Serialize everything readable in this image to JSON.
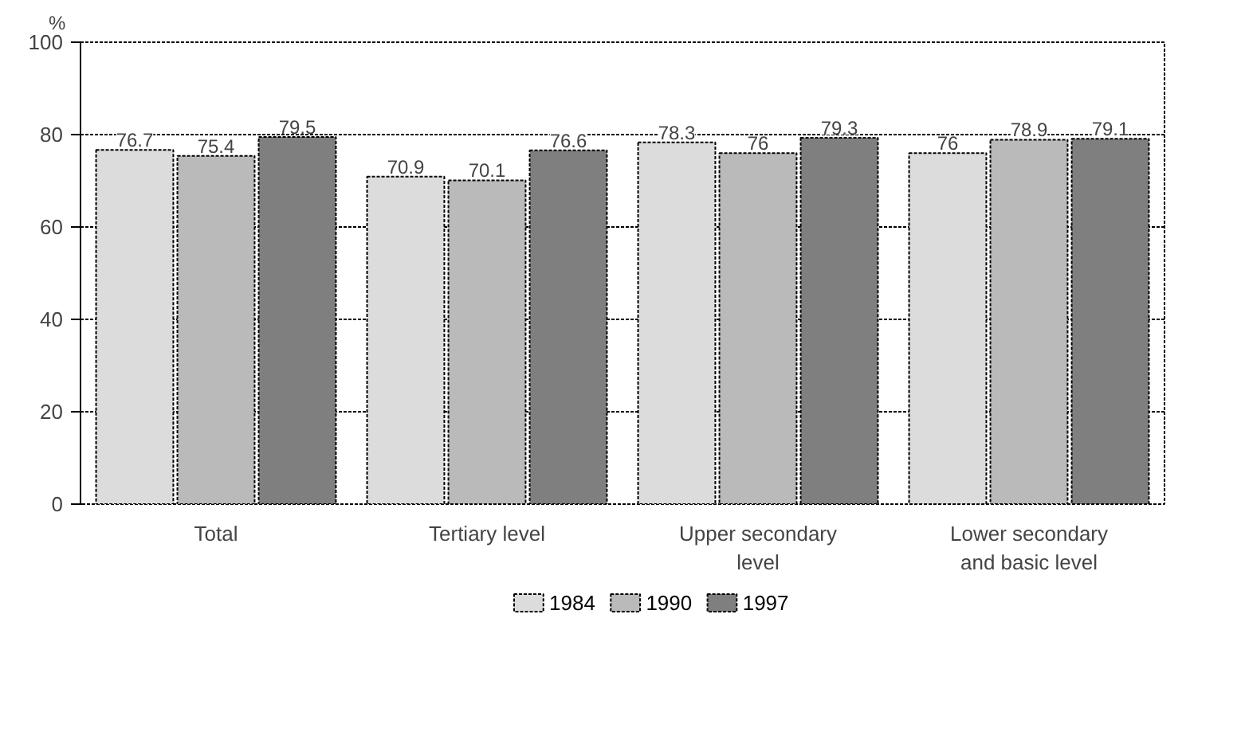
{
  "chart_data": {
    "type": "bar",
    "ylabel": "%",
    "categories": [
      "Total",
      "Tertiary level",
      "Upper secondary\nlevel",
      "Lower secondary\nand basic level"
    ],
    "series": [
      {
        "name": "1984",
        "color": "#dcdcdc",
        "values": [
          76.7,
          70.9,
          78.3,
          76
        ]
      },
      {
        "name": "1990",
        "color": "#bababa",
        "values": [
          75.4,
          70.1,
          76,
          78.9
        ]
      },
      {
        "name": "1997",
        "color": "#7f7f7f",
        "values": [
          79.5,
          76.6,
          79.3,
          79.1
        ]
      }
    ],
    "ylim": [
      0,
      100
    ],
    "yticks": [
      0,
      20,
      40,
      60,
      80,
      100
    ],
    "grid": "y",
    "legend": "bottom",
    "data_labels": true
  }
}
